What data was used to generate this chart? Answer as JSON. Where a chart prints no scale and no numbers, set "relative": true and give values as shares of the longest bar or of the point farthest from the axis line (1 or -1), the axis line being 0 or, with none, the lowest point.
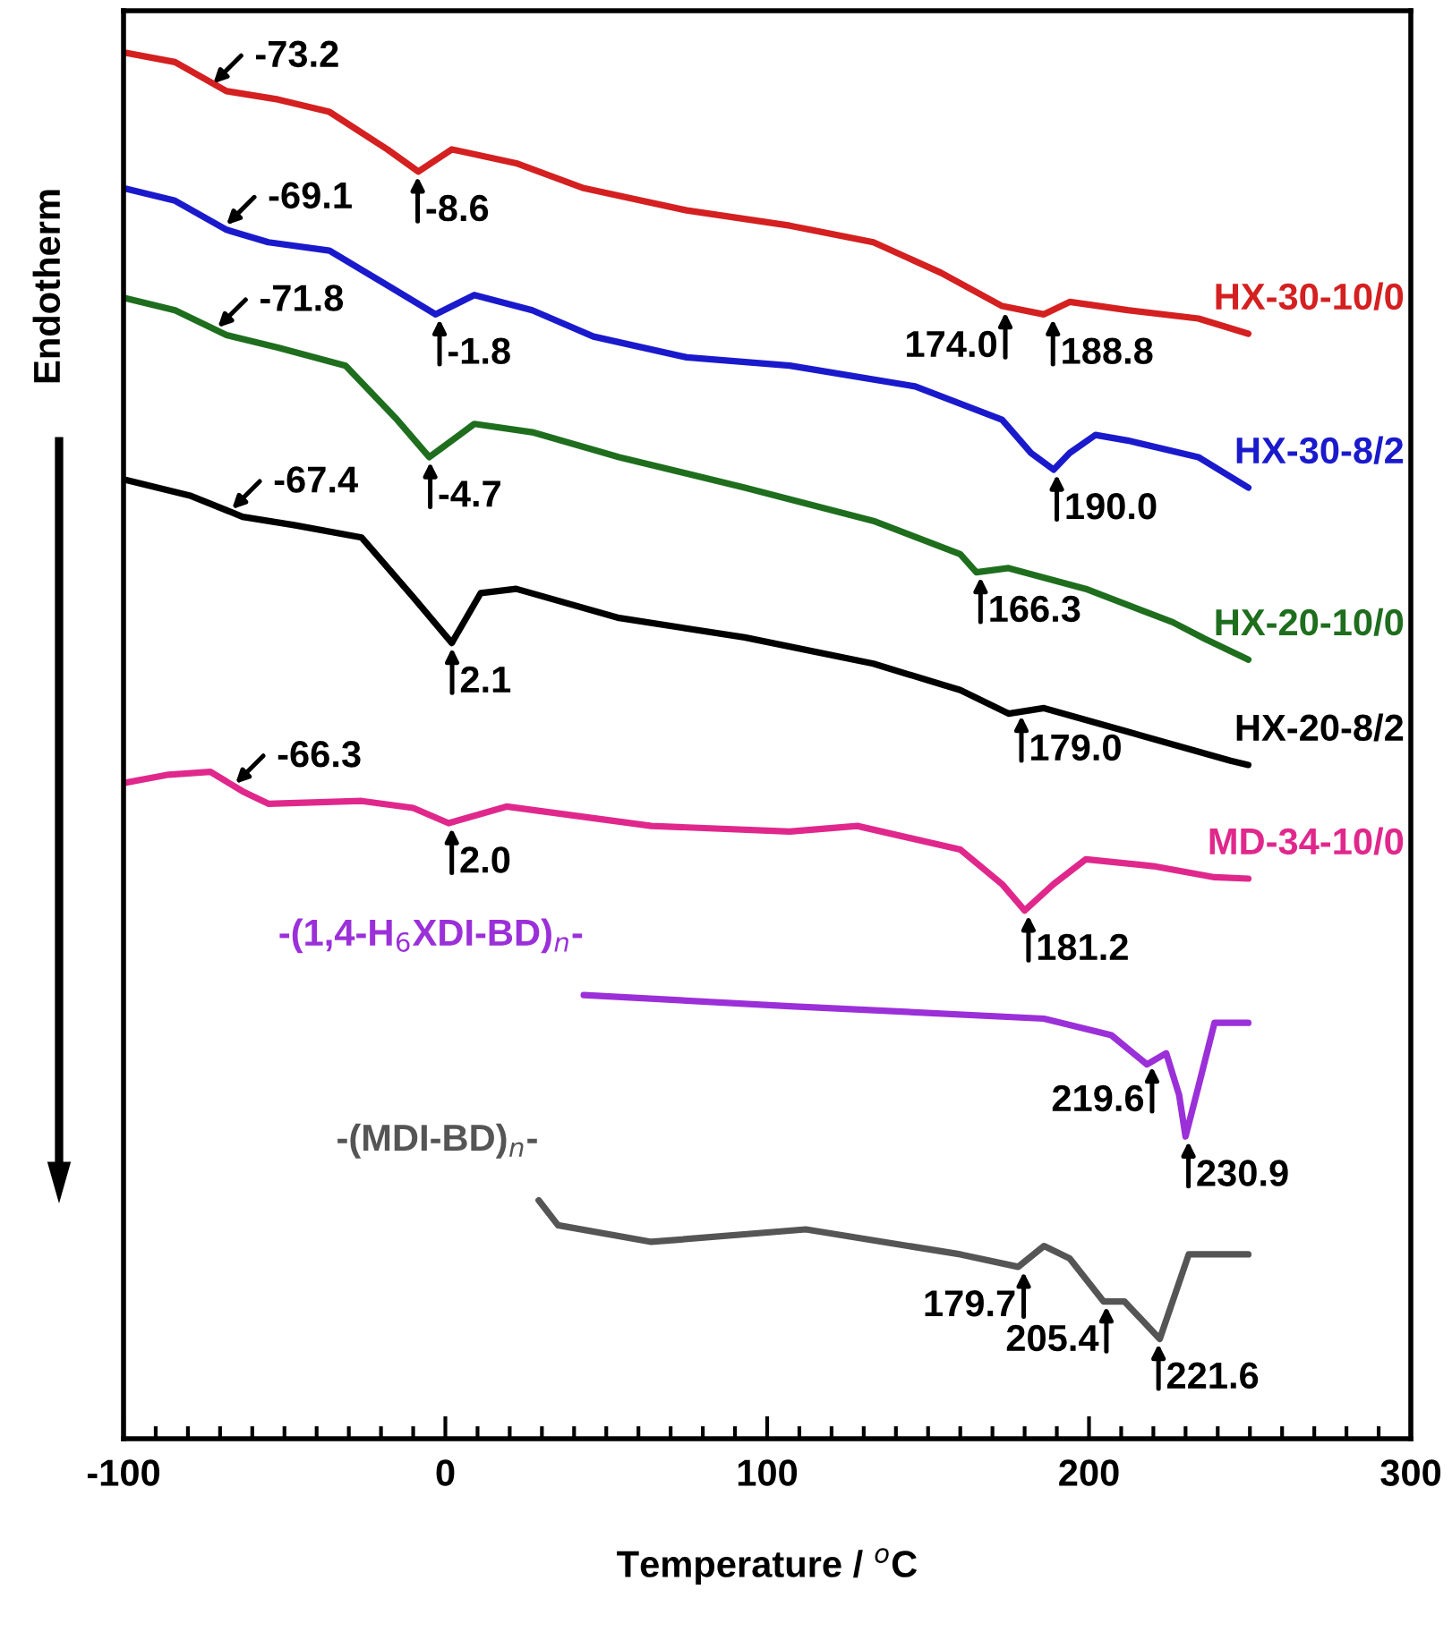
{
  "chart_data": {
    "type": "line",
    "relative": true,
    "xlabel": "Temperature / $^{o}$C",
    "ylabel": "Endotherm",
    "xlim": [
      -100,
      300
    ],
    "xticks": [
      -100,
      0,
      100,
      200,
      300
    ],
    "grid": false,
    "legend": false,
    "marker": "none",
    "line_style": "solid",
    "series": [
      {
        "name": "HX-30-10/0",
        "color": "#d42020",
        "x": [
          -100,
          -84,
          -68,
          -52,
          -36,
          -18,
          -8.4,
          2,
          22,
          43,
          75,
          107,
          133,
          154,
          173,
          186,
          194,
          212,
          234,
          249.5
        ],
        "values": [
          1.0,
          0.993,
          0.972,
          0.966,
          0.957,
          0.93,
          0.914,
          0.93,
          0.92,
          0.902,
          0.886,
          0.875,
          0.863,
          0.841,
          0.817,
          0.811,
          0.82,
          0.814,
          0.808,
          0.797
        ]
      },
      {
        "name": "HX-30-8/2",
        "color": "#1a1acc",
        "x": [
          -100,
          -84,
          -68,
          -55,
          -36,
          -18,
          -3,
          9,
          27,
          46,
          75,
          107,
          146,
          173,
          182,
          189,
          194,
          202,
          212,
          234,
          249.5
        ],
        "values": [
          0.902,
          0.893,
          0.872,
          0.863,
          0.857,
          0.832,
          0.811,
          0.825,
          0.814,
          0.795,
          0.78,
          0.774,
          0.759,
          0.735,
          0.711,
          0.699,
          0.711,
          0.724,
          0.72,
          0.708,
          0.686
        ]
      },
      {
        "name": "HX-20-10/0",
        "color": "#1e6e1e",
        "x": [
          -100,
          -84,
          -68,
          -52,
          -31,
          -15,
          -5,
          9,
          27,
          54,
          93,
          133,
          160,
          165,
          175,
          199,
          226,
          236,
          249.5
        ],
        "values": [
          0.823,
          0.814,
          0.796,
          0.787,
          0.774,
          0.735,
          0.708,
          0.732,
          0.726,
          0.708,
          0.686,
          0.662,
          0.638,
          0.625,
          0.628,
          0.613,
          0.589,
          0.577,
          0.562
        ]
      },
      {
        "name": "HX-20-8/2",
        "color": "#000000",
        "x": [
          -100,
          -79,
          -63,
          -47,
          -26,
          -10,
          2,
          11,
          22,
          54,
          93,
          133,
          160,
          175,
          186,
          212,
          244,
          249.5
        ],
        "values": [
          0.692,
          0.68,
          0.665,
          0.659,
          0.65,
          0.607,
          0.574,
          0.61,
          0.613,
          0.592,
          0.578,
          0.559,
          0.54,
          0.523,
          0.527,
          0.51,
          0.489,
          0.486
        ]
      },
      {
        "name": "MD-34-10/0",
        "color": "#e0288c",
        "x": [
          -100,
          -86,
          -73,
          -63,
          -55,
          -26,
          -10,
          1,
          19,
          64,
          107,
          128,
          160,
          173,
          180,
          189,
          199,
          220,
          239,
          249.5
        ],
        "values": [
          0.473,
          0.479,
          0.481,
          0.467,
          0.458,
          0.46,
          0.455,
          0.444,
          0.456,
          0.442,
          0.438,
          0.442,
          0.425,
          0.4,
          0.381,
          0.4,
          0.418,
          0.413,
          0.405,
          0.404
        ]
      },
      {
        "name": "-(1,4-H$_{6}$XDI-BD)$_{n}$-",
        "color": "#9b30d9",
        "x": [
          43,
          107,
          186,
          207,
          218,
          224,
          228,
          230,
          234,
          239,
          249.5
        ],
        "values": [
          0.32,
          0.312,
          0.303,
          0.291,
          0.27,
          0.278,
          0.248,
          0.218,
          0.254,
          0.3,
          0.3
        ]
      },
      {
        "name": "-(MDI-BD)$_{n}$-",
        "color": "#555555",
        "x": [
          29,
          35,
          64,
          112,
          160,
          178,
          186,
          194,
          204.5,
          211,
          222,
          231,
          249.5
        ],
        "values": [
          0.172,
          0.154,
          0.142,
          0.151,
          0.133,
          0.124,
          0.139,
          0.13,
          0.099,
          0.099,
          0.072,
          0.133,
          0.133
        ]
      }
    ],
    "annotations": [
      {
        "text": "-73.2",
        "x": -73.2,
        "y": 0.975
      },
      {
        "text": "-8.6",
        "x": -8.6,
        "y": 0.914
      },
      {
        "text": "174.0",
        "x": 174.0,
        "y": 0.816
      },
      {
        "text": "188.8",
        "x": 188.8,
        "y": 0.811
      },
      {
        "text": "-69.1",
        "x": -69.1,
        "y": 0.873
      },
      {
        "text": "-1.8",
        "x": -1.8,
        "y": 0.811
      },
      {
        "text": "190.0",
        "x": 190.0,
        "y": 0.699
      },
      {
        "text": "-71.8",
        "x": -71.8,
        "y": 0.799
      },
      {
        "text": "-4.7",
        "x": -4.7,
        "y": 0.708
      },
      {
        "text": "166.3",
        "x": 166.3,
        "y": 0.625
      },
      {
        "text": "-67.4",
        "x": -67.4,
        "y": 0.668
      },
      {
        "text": "2.1",
        "x": 2.1,
        "y": 0.574
      },
      {
        "text": "179.0",
        "x": 179.0,
        "y": 0.525
      },
      {
        "text": "-66.3",
        "x": -66.3,
        "y": 0.47
      },
      {
        "text": "2.0",
        "x": 2.0,
        "y": 0.444
      },
      {
        "text": "181.2",
        "x": 181.2,
        "y": 0.381
      },
      {
        "text": "219.6",
        "x": 219.6,
        "y": 0.272
      },
      {
        "text": "230.9",
        "x": 230.9,
        "y": 0.218
      },
      {
        "text": "179.7",
        "x": 179.7,
        "y": 0.124
      },
      {
        "text": "205.4",
        "x": 205.4,
        "y": 0.099
      },
      {
        "text": "221.6",
        "x": 221.6,
        "y": 0.072
      }
    ]
  }
}
